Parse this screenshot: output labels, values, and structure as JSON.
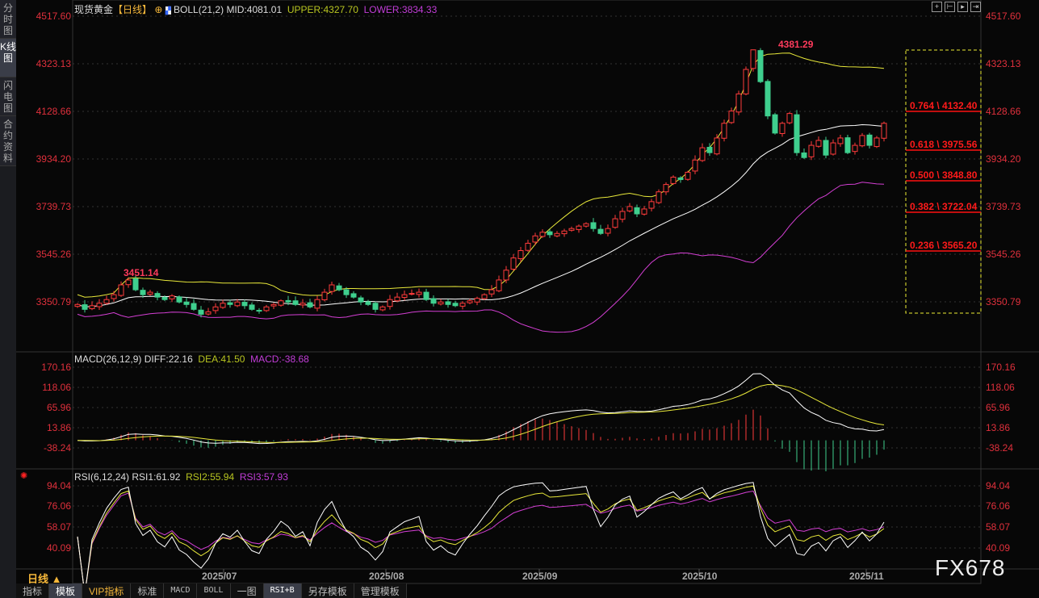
{
  "left_tabs": [
    "分时图",
    "K线图",
    "闪电图",
    "合约资料"
  ],
  "header": {
    "symbol": "现货黄金",
    "period": "【日线】",
    "boll": "BOLL(21,2)",
    "mid": "MID:4081.01",
    "upper": "UPPER:4327.70",
    "lower": "LOWER:3834.33"
  },
  "main_axis": [
    "4517.60",
    "4323.13",
    "4128.66",
    "3934.20",
    "3739.73",
    "3545.26",
    "3350.79"
  ],
  "annotations": {
    "high1": "3451.14",
    "high2": "4381.29"
  },
  "fib": [
    "0.764 \\ 4132.40",
    "0.618 \\ 3975.56",
    "0.500 \\ 3848.80",
    "0.382 \\ 3722.04",
    "0.236 \\ 3565.20"
  ],
  "macd": {
    "title": "MACD(26,12,9)",
    "diff": "DIFF:22.16",
    "dea": "DEA:41.50",
    "macd": "MACD:-38.68",
    "axis": [
      "170.16",
      "118.06",
      "65.96",
      "13.86",
      "-38.24"
    ]
  },
  "rsi": {
    "title": "RSI(6,12,24)",
    "rsi1": "RSI1:61.92",
    "rsi2": "RSI2:55.94",
    "rsi3": "RSI3:57.93",
    "axis": [
      "94.04",
      "76.06",
      "58.07",
      "40.09"
    ]
  },
  "dates": [
    "2025/07",
    "2025/08",
    "2025/09",
    "2025/10",
    "2025/11"
  ],
  "period_label": "日线 ▲",
  "bottom_tabs": [
    "指标",
    "模板",
    "VIP指标",
    "标准",
    "MACD",
    "BOLL",
    "一图",
    "RSI+B",
    "另存模板",
    "管理模板"
  ],
  "watermark": "FX678",
  "colors": {
    "up": "#ff3b3b",
    "down": "#3fcf8e",
    "mid": "#ffffff",
    "upper": "#e8e83a",
    "lower": "#d43fd4",
    "axis": "#e0303c"
  },
  "chart_data": {
    "type": "candlestick",
    "closes": [
      3340,
      3320,
      3335,
      3345,
      3360,
      3380,
      3420,
      3440,
      3400,
      3380,
      3390,
      3370,
      3360,
      3375,
      3350,
      3340,
      3320,
      3300,
      3310,
      3330,
      3345,
      3340,
      3350,
      3335,
      3320,
      3315,
      3330,
      3340,
      3355,
      3350,
      3340,
      3345,
      3330,
      3360,
      3390,
      3420,
      3400,
      3380,
      3370,
      3350,
      3340,
      3320,
      3330,
      3360,
      3370,
      3380,
      3385,
      3390,
      3360,
      3345,
      3350,
      3340,
      3335,
      3345,
      3355,
      3365,
      3380,
      3400,
      3440,
      3480,
      3530,
      3560,
      3590,
      3620,
      3635,
      3625,
      3630,
      3640,
      3650,
      3660,
      3670,
      3650,
      3630,
      3650,
      3690,
      3720,
      3740,
      3710,
      3730,
      3760,
      3800,
      3830,
      3860,
      3850,
      3880,
      3930,
      3980,
      3960,
      4020,
      4080,
      4130,
      4200,
      4300,
      4380,
      4250,
      4110,
      4040,
      4080,
      4120,
      3960,
      3940,
      3990,
      4010,
      3950,
      4000,
      4020,
      3960,
      3990,
      4030,
      3990,
      4020,
      4080
    ],
    "ylim": [
      3300,
      4517.6
    ]
  }
}
